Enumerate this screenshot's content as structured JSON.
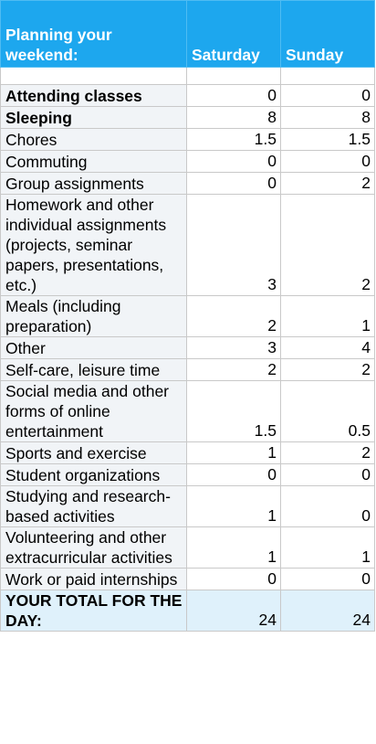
{
  "header": {
    "label": "Planning your weekend:",
    "day1": "Saturday",
    "day2": "Sunday"
  },
  "rows": [
    {
      "label": "Attending classes",
      "sat": "0",
      "sun": "0"
    },
    {
      "label": "Sleeping",
      "sat": "8",
      "sun": "8"
    },
    {
      "label": "Chores",
      "sat": "1.5",
      "sun": "1.5"
    },
    {
      "label": "Commuting",
      "sat": "0",
      "sun": "0"
    },
    {
      "label": "Group assignments",
      "sat": "0",
      "sun": "2"
    },
    {
      "label": "Homework and other individual assignments (projects, seminar papers, presentations, etc.)",
      "sat": "3",
      "sun": "2"
    },
    {
      "label": "Meals (including preparation)",
      "sat": "2",
      "sun": "1"
    },
    {
      "label": "Other",
      "sat": "3",
      "sun": "4"
    },
    {
      "label": "Self-care, leisure time",
      "sat": "2",
      "sun": "2"
    },
    {
      "label": "Social media and other forms of online entertainment",
      "sat": "1.5",
      "sun": "0.5"
    },
    {
      "label": "Sports and exercise",
      "sat": "1",
      "sun": "2"
    },
    {
      "label": "Student organizations",
      "sat": "0",
      "sun": "0"
    },
    {
      "label": "Studying and research-based activities",
      "sat": "1",
      "sun": "0"
    },
    {
      "label": "Volunteering and other extracurricular activities",
      "sat": "1",
      "sun": "1"
    },
    {
      "label": "Work or paid internships",
      "sat": "0",
      "sun": "0"
    }
  ],
  "total": {
    "label": "YOUR TOTAL FOR THE DAY:",
    "sat": "24",
    "sun": "24"
  },
  "colors": {
    "header_bg": "#1da7ee",
    "label_bg": "#f1f4f7",
    "total_bg": "#dff1fb"
  }
}
